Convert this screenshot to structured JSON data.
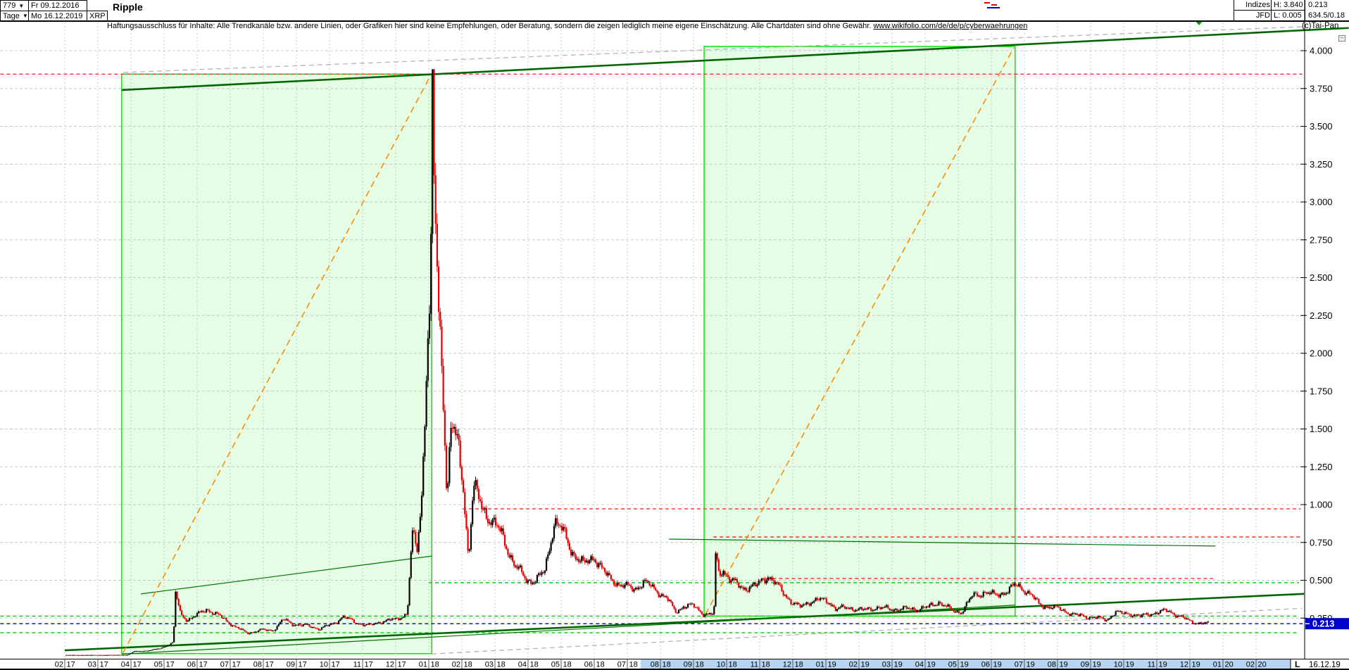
{
  "header": {
    "bars_count": "779",
    "period": "Tage",
    "dropdown_arrow": "▼",
    "date_from": "Fr 09.12.2016",
    "date_to": "Mo 16.12.2019",
    "symbol": "XRP",
    "title": "Ripple",
    "disclaimer": "Haftungsausschluss für Inhalte: Alle Trendkanäle bzw. andere Linien, oder Grafiken hier sind keine Empfehlungen, oder Beratung, sondern die zeigen lediglich meine eigene Einschätzung. Alle Chartdaten sind ohne Gewähr.  ",
    "disclaimer_url": "www.wikifolio.com/de/de/p/cyberwaehrungen",
    "copyright": "(c)Tai-Pan",
    "collapse_icon": "–",
    "info_table": {
      "rows": [
        [
          "Indizes",
          "H: 3.840",
          "0.213"
        ],
        [
          "JFD",
          "L: 0.005",
          "634.5/0.18"
        ]
      ]
    }
  },
  "axis_corner": {
    "l_label": "L",
    "last_date_label": "16.12.19"
  },
  "chart_data": {
    "type": "candlestick",
    "title": "Ripple (XRP) Tageschart 09.12.2016 - 16.12.2019",
    "last_price": 0.213,
    "last_price_label": "0.213",
    "all_time_high": 3.84,
    "all_time_low": 0.005,
    "x_month_labels": [
      "02.17",
      "03.17",
      "04.17",
      "05.17",
      "06.17",
      "07.17",
      "08.17",
      "09.17",
      "10.17",
      "11.17",
      "12.17",
      "01.18",
      "02.18",
      "03.18",
      "04.18",
      "05.18",
      "06.18",
      "07.18",
      "08.18",
      "09.18",
      "10.18",
      "11.18",
      "12.18",
      "01.19",
      "02.19",
      "03.19",
      "04.19",
      "05.19",
      "06.19",
      "07.19",
      "08.19",
      "09.19",
      "10.19",
      "11.19",
      "12.19",
      "01.20",
      "02.20"
    ],
    "y_tick_labels": [
      "4.000",
      "3.750",
      "3.500",
      "3.250",
      "3.000",
      "2.750",
      "2.500",
      "2.250",
      "2.000",
      "1.750",
      "1.500",
      "1.250",
      "1.000",
      "0.750",
      "0.500",
      "0.250"
    ],
    "y_tick_values": [
      4.0,
      3.75,
      3.5,
      3.25,
      3.0,
      2.75,
      2.5,
      2.25,
      2.0,
      1.75,
      1.5,
      1.25,
      1.0,
      0.75,
      0.5,
      0.25
    ],
    "ylim": [
      -0.03,
      4.13
    ],
    "grid": true,
    "legend_position": "none",
    "highlight_months": {
      "from": 17.4,
      "to": 37.03
    },
    "price_keyframes": [
      [
        0,
        0.006
      ],
      [
        1,
        0.006
      ],
      [
        1.9,
        0.007
      ],
      [
        2.1,
        0.03
      ],
      [
        2.5,
        0.035
      ],
      [
        2.9,
        0.05
      ],
      [
        3.1,
        0.07
      ],
      [
        3.28,
        0.09
      ],
      [
        3.35,
        0.42
      ],
      [
        3.5,
        0.27
      ],
      [
        3.7,
        0.24
      ],
      [
        4.0,
        0.27
      ],
      [
        4.3,
        0.31
      ],
      [
        4.7,
        0.26
      ],
      [
        5.1,
        0.2
      ],
      [
        5.5,
        0.15
      ],
      [
        5.9,
        0.17
      ],
      [
        6.3,
        0.17
      ],
      [
        6.6,
        0.24
      ],
      [
        6.9,
        0.21
      ],
      [
        7.3,
        0.2
      ],
      [
        7.7,
        0.18
      ],
      [
        8.1,
        0.21
      ],
      [
        8.4,
        0.26
      ],
      [
        8.8,
        0.22
      ],
      [
        9.2,
        0.2
      ],
      [
        9.6,
        0.23
      ],
      [
        10.0,
        0.24
      ],
      [
        10.35,
        0.28
      ],
      [
        10.5,
        0.8
      ],
      [
        10.65,
        0.7
      ],
      [
        10.8,
        1.1
      ],
      [
        10.95,
        2.05
      ],
      [
        11.06,
        2.4
      ],
      [
        11.1,
        3.84
      ],
      [
        11.18,
        2.95
      ],
      [
        11.3,
        2.25
      ],
      [
        11.42,
        1.85
      ],
      [
        11.55,
        1.05
      ],
      [
        11.68,
        1.55
      ],
      [
        11.9,
        1.35
      ],
      [
        12.05,
        1.1
      ],
      [
        12.2,
        0.65
      ],
      [
        12.35,
        1.12
      ],
      [
        12.6,
        0.98
      ],
      [
        12.9,
        0.9
      ],
      [
        13.2,
        0.8
      ],
      [
        13.6,
        0.6
      ],
      [
        13.95,
        0.5
      ],
      [
        14.2,
        0.5
      ],
      [
        14.5,
        0.55
      ],
      [
        14.8,
        0.9
      ],
      [
        15.0,
        0.84
      ],
      [
        15.3,
        0.7
      ],
      [
        15.7,
        0.6
      ],
      [
        16.0,
        0.66
      ],
      [
        16.4,
        0.52
      ],
      [
        16.8,
        0.47
      ],
      [
        17.2,
        0.44
      ],
      [
        17.5,
        0.49
      ],
      [
        17.9,
        0.43
      ],
      [
        18.2,
        0.38
      ],
      [
        18.45,
        0.29
      ],
      [
        18.7,
        0.33
      ],
      [
        19.0,
        0.33
      ],
      [
        19.3,
        0.28
      ],
      [
        19.55,
        0.27
      ],
      [
        19.62,
        0.29
      ],
      [
        19.68,
        0.73
      ],
      [
        19.74,
        0.55
      ],
      [
        19.9,
        0.57
      ],
      [
        20.1,
        0.5
      ],
      [
        20.5,
        0.45
      ],
      [
        20.9,
        0.46
      ],
      [
        21.1,
        0.51
      ],
      [
        21.25,
        0.53
      ],
      [
        21.5,
        0.47
      ],
      [
        21.8,
        0.4
      ],
      [
        21.95,
        0.36
      ],
      [
        22.2,
        0.32
      ],
      [
        22.5,
        0.36
      ],
      [
        22.8,
        0.37
      ],
      [
        23.1,
        0.36
      ],
      [
        23.3,
        0.31
      ],
      [
        23.7,
        0.32
      ],
      [
        24.1,
        0.3
      ],
      [
        24.5,
        0.32
      ],
      [
        24.9,
        0.31
      ],
      [
        25.3,
        0.31
      ],
      [
        25.7,
        0.31
      ],
      [
        26.1,
        0.32
      ],
      [
        26.4,
        0.36
      ],
      [
        26.8,
        0.3
      ],
      [
        27.1,
        0.29
      ],
      [
        27.45,
        0.4
      ],
      [
        27.8,
        0.42
      ],
      [
        28.1,
        0.4
      ],
      [
        28.5,
        0.43
      ],
      [
        28.75,
        0.47
      ],
      [
        29.0,
        0.44
      ],
      [
        29.2,
        0.4
      ],
      [
        29.45,
        0.34
      ],
      [
        29.8,
        0.32
      ],
      [
        30.1,
        0.31
      ],
      [
        30.5,
        0.27
      ],
      [
        30.9,
        0.26
      ],
      [
        31.2,
        0.25
      ],
      [
        31.5,
        0.24
      ],
      [
        31.75,
        0.29
      ],
      [
        31.9,
        0.28
      ],
      [
        32.2,
        0.28
      ],
      [
        32.5,
        0.26
      ],
      [
        32.8,
        0.28
      ],
      [
        33.1,
        0.29
      ],
      [
        33.35,
        0.3
      ],
      [
        33.7,
        0.26
      ],
      [
        34.0,
        0.23
      ],
      [
        34.2,
        0.22
      ],
      [
        34.4,
        0.215
      ],
      [
        34.55,
        0.213
      ]
    ],
    "levels": [
      {
        "name": "ath-line",
        "color": "red",
        "price": 3.845,
        "from": -1.95,
        "to": 37.4
      },
      {
        "name": "resistance-0.97",
        "color": "red",
        "price": 0.972,
        "from": 12.02,
        "to": 37.35
      },
      {
        "name": "resistance-0.79",
        "color": "red",
        "price": 0.786,
        "from": 19.6,
        "to": 37.35
      },
      {
        "name": "resistance-0.51",
        "color": "red",
        "price": 0.512,
        "from": 21.2,
        "to": 34.7
      },
      {
        "name": "level-0.48",
        "color": "green",
        "price": 0.484,
        "from": 11.0,
        "to": 37.3
      },
      {
        "name": "level-0.26",
        "color": "green",
        "price": 0.263,
        "from": -1.95,
        "to": 37.3
      },
      {
        "name": "level-0.15",
        "color": "green",
        "price": 0.153,
        "from": -1.95,
        "to": 37.3
      },
      {
        "name": "last-price-line",
        "color": "blue",
        "price": 0.213,
        "from": -1.95,
        "to": 37.45
      }
    ],
    "trendlines": [
      {
        "name": "upper-channel-thick",
        "width": 2.6,
        "pts": [
          [
            1.72,
            3.74
          ],
          [
            38.8,
            4.15
          ]
        ]
      },
      {
        "name": "lower-support-thick",
        "width": 2.6,
        "pts": [
          [
            0.0,
            0.037
          ],
          [
            37.45,
            0.41
          ]
        ]
      },
      {
        "name": "inner-channel-2017",
        "width": 1.2,
        "pts": [
          [
            2.3,
            0.41
          ],
          [
            11.09,
            0.66
          ]
        ]
      },
      {
        "name": "neckline-2018",
        "width": 1.2,
        "pts": [
          [
            18.26,
            0.772
          ],
          [
            34.77,
            0.726
          ]
        ]
      },
      {
        "name": "support-2019",
        "width": 1.2,
        "pts": [
          [
            1.72,
            0.012
          ],
          [
            28.72,
            0.336
          ]
        ]
      }
    ],
    "gray_parallels": [
      {
        "pts": [
          [
            1.77,
            3.856
          ],
          [
            37.4,
            4.158
          ]
        ]
      },
      {
        "pts": [
          [
            11.09,
            0.013
          ],
          [
            37.4,
            0.315
          ]
        ]
      }
    ],
    "boxes": [
      {
        "name": "trend-box-2017",
        "i0": 1.72,
        "i1": 11.09,
        "p_low": 0.015,
        "p_high": 3.845
      },
      {
        "name": "trend-box-2018-19",
        "i0": 19.32,
        "i1": 28.72,
        "p_low": 0.263,
        "p_high": 4.028
      }
    ],
    "orange_diagonals": [
      {
        "pts": [
          [
            1.76,
            0.02
          ],
          [
            11.04,
            3.83
          ]
        ]
      },
      {
        "pts": [
          [
            19.36,
            0.275
          ],
          [
            28.68,
            4.02
          ]
        ]
      }
    ],
    "colors": {
      "up": "#000000",
      "down": "#e60000",
      "box_border": "#00dd00",
      "box_fill": "rgba(0,225,0,0.10)",
      "orange": "#ff8c00",
      "trend_green": "#006600",
      "thin_green": "#007700",
      "level_red": "#ff2a2a",
      "level_green": "#00cc00",
      "level_blue": "#0000cc",
      "grid": "#c8c8c8",
      "gray_line": "#b4b4b4",
      "highlight": "#b7d5f2",
      "badge": "#0000cc"
    }
  }
}
